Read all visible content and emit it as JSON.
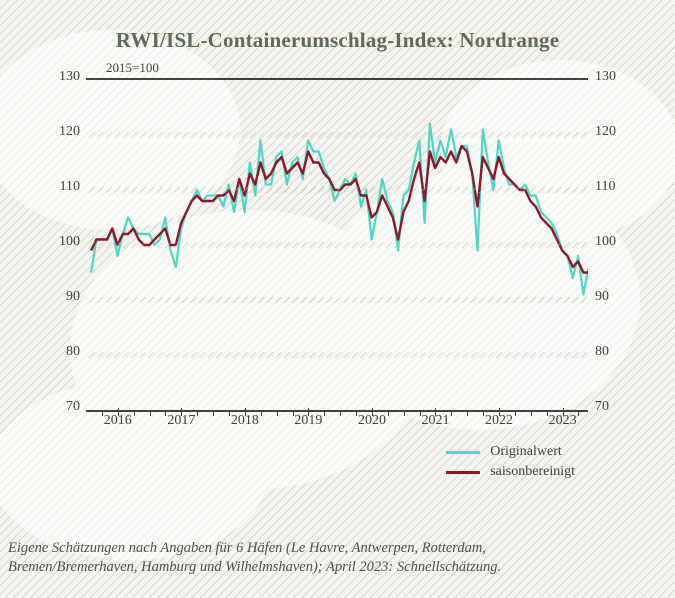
{
  "background": {
    "base_color": "#f5f4ef",
    "hatch_color": "#bdbdb3",
    "hatch_spacing": 6,
    "hatch_angle_deg": 45,
    "map_blob_color": "#ffffff",
    "map_blob_opacity": 0.55
  },
  "chart": {
    "type": "line",
    "title": "RWI/ISL-Containerumschlag-Index: Nordrange",
    "title_color": "#5e6b57",
    "title_fontsize": 21,
    "subtitle": "2015=100",
    "subtitle_fontsize": 13,
    "axis_color": "#3b443a",
    "axis_fontsize": 14,
    "border_top_bottom_width": 2,
    "ylim": [
      70,
      130
    ],
    "ytick_step": 10,
    "xlim_years": [
      2015.5,
      2023.4
    ],
    "x_major_ticks_years": [
      2016,
      2017,
      2018,
      2019,
      2020,
      2021,
      2022,
      2023
    ],
    "x_minor_tick_count_between": 3,
    "gridline_style": "diagonal-hatch-band",
    "gridline_hatch_color": "#bdbdb3",
    "series": [
      {
        "name": "Originalwert",
        "color": "#4fd5c9",
        "line_width": 2.2,
        "x_start_year": 2015.58,
        "x_step_years": 0.0833,
        "y": [
          95,
          101,
          101,
          101,
          103,
          98,
          102,
          105,
          103,
          102,
          102,
          102,
          100,
          101,
          105,
          99,
          96,
          103,
          106,
          108,
          110,
          108,
          109,
          109,
          109,
          107,
          111,
          106,
          112,
          106,
          115,
          109,
          119,
          111,
          111,
          116,
          117,
          111,
          115,
          116,
          112,
          119,
          117,
          117,
          114,
          112,
          108,
          110,
          112,
          111,
          113,
          107,
          110,
          101,
          106,
          112,
          108,
          106,
          99,
          109,
          110,
          115,
          119,
          104,
          122,
          115,
          119,
          116,
          121,
          116,
          118,
          118,
          113,
          99,
          121,
          115,
          110,
          119,
          114,
          111,
          111,
          110,
          111,
          109,
          109,
          106,
          105,
          104,
          102,
          99,
          98,
          94,
          98,
          91,
          96
        ]
      },
      {
        "name": "saisonbereinigt",
        "color": "#8b1a29",
        "line_width": 2.4,
        "x_start_year": 2015.58,
        "x_step_years": 0.0833,
        "y": [
          99,
          101,
          101,
          101,
          103,
          100,
          102,
          102,
          103,
          101,
          100,
          100,
          101,
          102,
          103,
          100,
          100,
          104,
          106,
          108,
          109,
          108,
          108,
          108,
          109,
          109,
          110,
          108,
          112,
          109,
          113,
          111,
          115,
          112,
          113,
          115,
          116,
          113,
          114,
          115,
          113,
          117,
          115,
          115,
          113,
          112,
          110,
          110,
          111,
          111,
          112,
          109,
          109,
          105,
          106,
          109,
          107,
          105,
          101,
          106,
          108,
          112,
          115,
          108,
          117,
          114,
          116,
          115,
          117,
          115,
          118,
          117,
          113,
          107,
          116,
          114,
          112,
          116,
          113,
          112,
          111,
          110,
          110,
          108,
          107,
          105,
          104,
          103,
          101,
          99,
          98,
          96,
          97,
          95,
          95
        ]
      }
    ]
  },
  "legend": {
    "items": [
      {
        "label": "Originalwert",
        "color": "#4fd5c9",
        "swatch_height": 3
      },
      {
        "label": "saisonbereinigt",
        "color": "#8b1a29",
        "swatch_height": 3
      }
    ],
    "fontsize": 14,
    "text_color": "#3b443a"
  },
  "footnote": {
    "line1": "Eigene Schätzungen nach Angaben für 6 Häfen (Le Havre, Antwerpen, Rotterdam,",
    "line2": "Bremen/Bremerhaven, Hamburg und Wilhelmshaven); April 2023: Schnellschätzung.",
    "fontsize": 14.5,
    "color": "#4a544a",
    "font_style": "italic"
  }
}
